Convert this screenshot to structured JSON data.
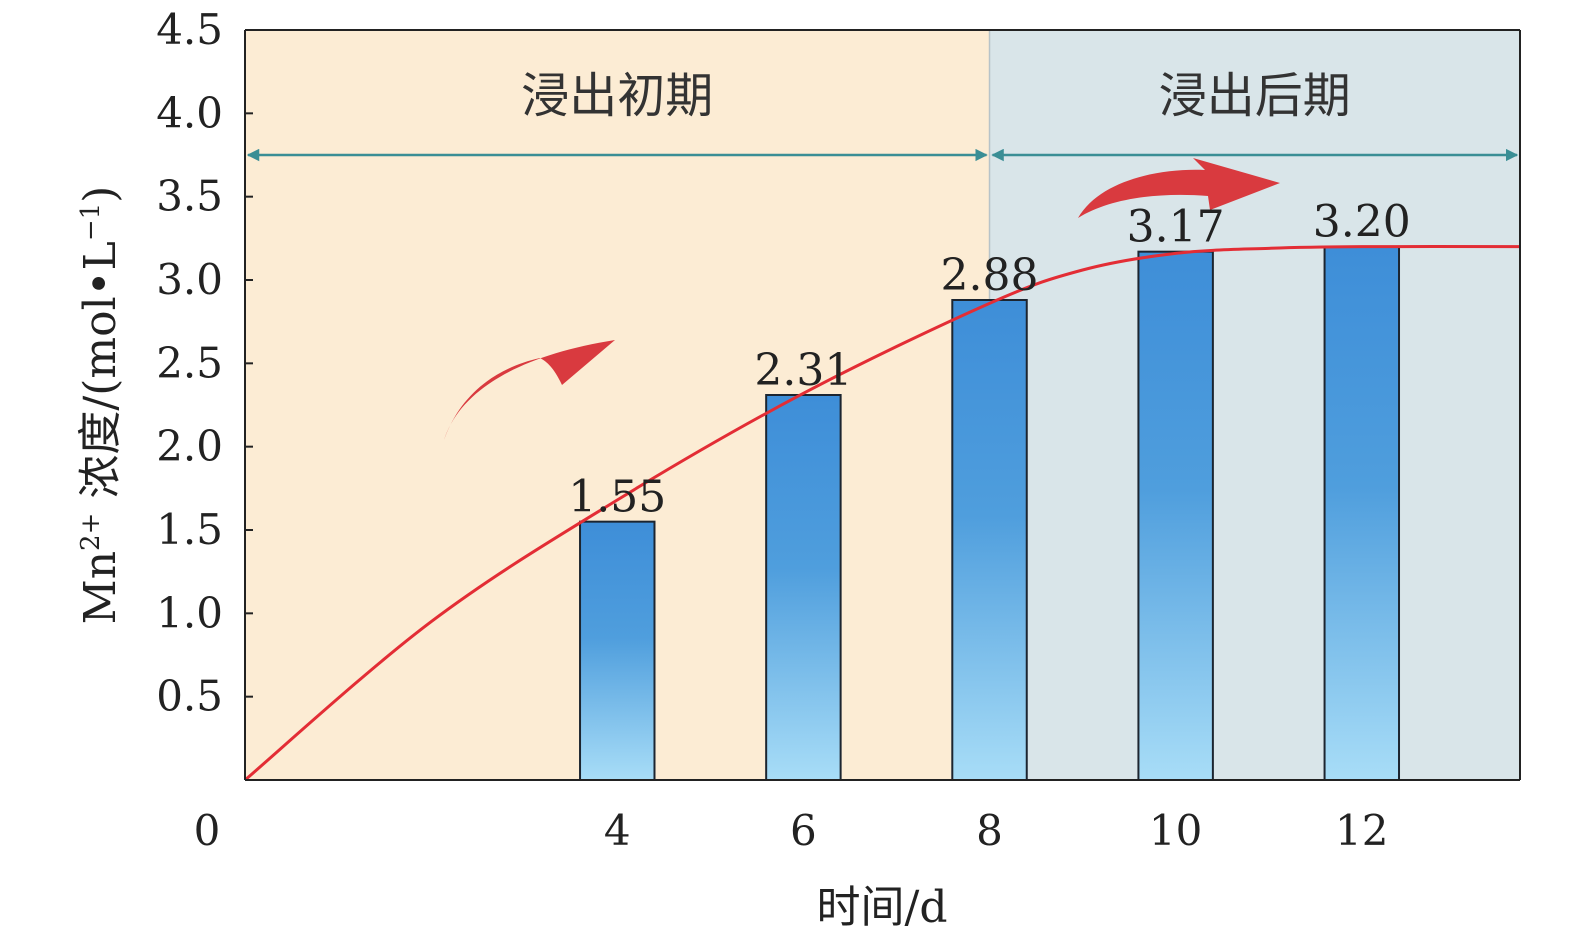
{
  "chart_data": {
    "type": "bar",
    "x_axis": {
      "label": "时间/d",
      "origin_label": "0",
      "categories": [
        "4",
        "6",
        "8",
        "10",
        "12"
      ],
      "range": [
        0,
        13.7
      ]
    },
    "y_axis": {
      "label_prefix": "Mn",
      "label_superscript": "2+",
      "label_main": " 浓度/(mol•L",
      "label_unit_superscript": "−1",
      "label_suffix": ")",
      "range": [
        0,
        4.5
      ],
      "ticks": [
        "0.5",
        "1.0",
        "1.5",
        "2.0",
        "2.5",
        "3.0",
        "3.5",
        "4.0",
        "4.5"
      ]
    },
    "series": [
      {
        "x": [
          4,
          6,
          8,
          10,
          12
        ],
        "values": [
          1.55,
          2.31,
          2.88,
          3.17,
          3.2
        ],
        "data_labels": [
          "1.55",
          "2.31",
          "2.88",
          "3.17",
          "3.20"
        ]
      }
    ],
    "trend_line": {
      "color": "#e32d35",
      "points": [
        [
          0,
          0
        ],
        [
          2,
          0.95
        ],
        [
          4,
          1.68
        ],
        [
          6,
          2.32
        ],
        [
          8,
          2.86
        ],
        [
          9,
          3.06
        ],
        [
          10,
          3.16
        ],
        [
          11,
          3.19
        ],
        [
          12,
          3.2
        ],
        [
          13.7,
          3.2
        ]
      ]
    },
    "regions": [
      {
        "label": "浸出初期",
        "x_range": [
          0,
          8
        ],
        "color": "#fcecd4"
      },
      {
        "label": "浸出后期",
        "x_range": [
          8,
          13.7
        ],
        "color": "#d9e5e9"
      }
    ],
    "region_arrow_y": 3.75,
    "region_arrow_color": "#3a8e95",
    "bar_gradient": {
      "top": "#3e8ed8",
      "bottom": "#a8ddf7"
    },
    "bar_stroke": "#1c2530",
    "decorative_arrow_color": "#d93a3f",
    "grid": false,
    "legend": "none"
  }
}
